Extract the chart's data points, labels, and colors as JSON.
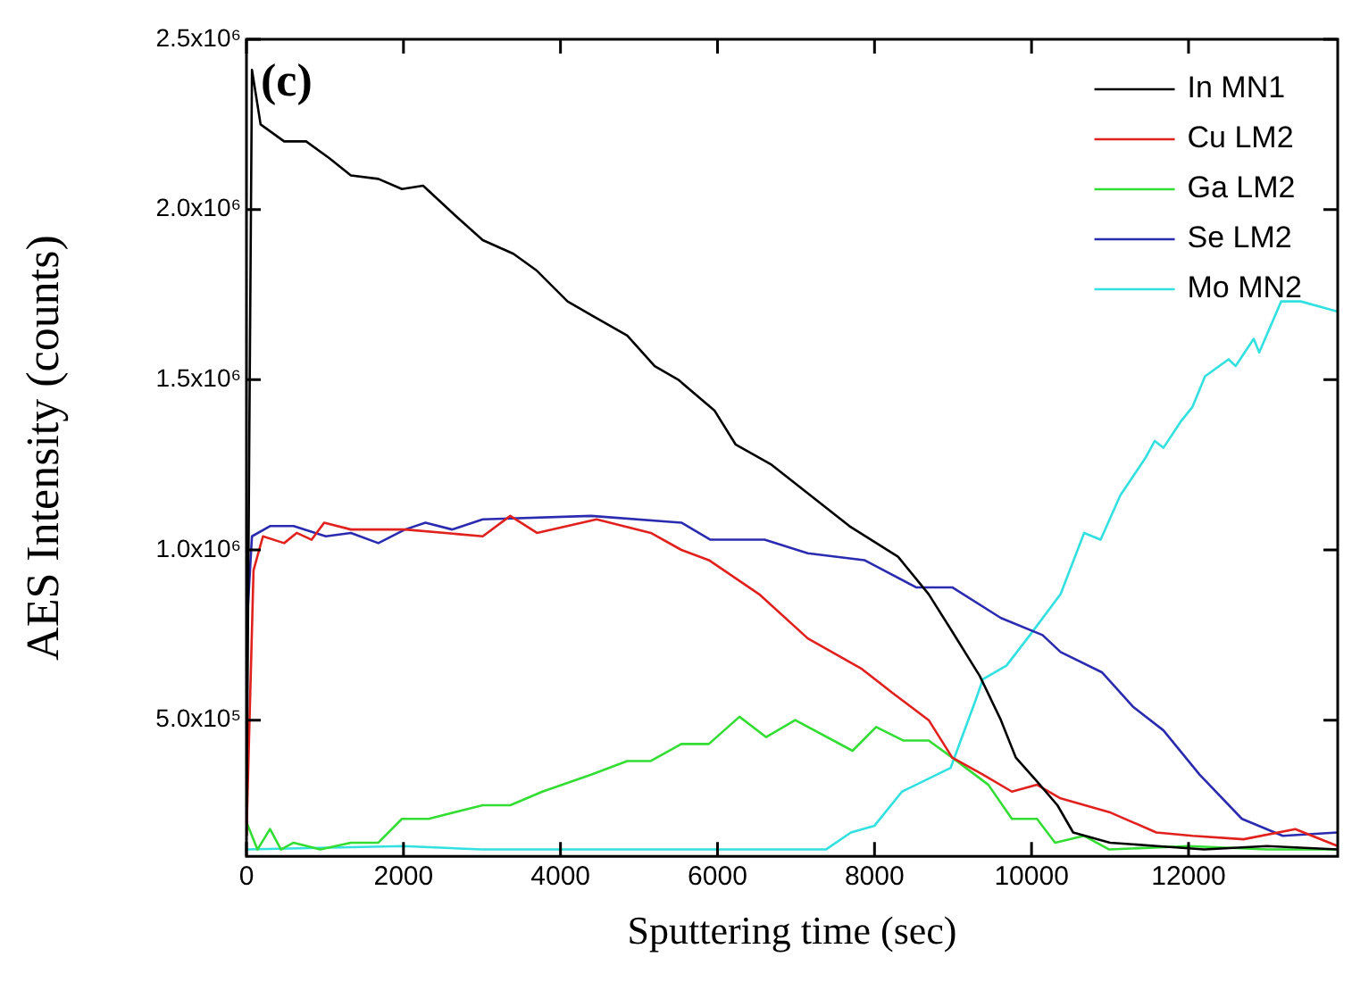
{
  "chart_data": {
    "type": "line",
    "xlabel": "Sputtering time (sec)",
    "ylabel": "AES Intensity (counts)",
    "annotations": [
      "(c)"
    ],
    "xlim": [
      0,
      13900
    ],
    "xticks": [
      0,
      2000,
      4000,
      6000,
      8000,
      10000,
      12000
    ],
    "ylim": [
      100000,
      2500000
    ],
    "yticks": [
      {
        "value": 500000,
        "label": "5.0x10⁵"
      },
      {
        "value": 1000000,
        "label": "1.0x10⁶"
      },
      {
        "value": 1500000,
        "label": "1.5x10⁶"
      },
      {
        "value": 2000000,
        "label": "2.0x10⁶"
      },
      {
        "value": 2500000,
        "label": "2.5x10⁶"
      }
    ],
    "grid": false,
    "legend": "top right",
    "marker": "none",
    "line_style": "solid",
    "series": [
      {
        "name": "In MN1",
        "color": "#000000",
        "x": [
          0,
          70,
          180,
          480,
          760,
          1060,
          1330,
          1680,
          1980,
          2250,
          2670,
          3010,
          3400,
          3700,
          4090,
          4390,
          4850,
          5200,
          5500,
          5960,
          6230,
          6690,
          7680,
          8300,
          8690,
          8990,
          9340,
          9610,
          9800,
          10070,
          10330,
          10530,
          11000,
          11600,
          12200,
          13000,
          13900
        ],
        "values": [
          160000,
          2410000,
          2250000,
          2200000,
          2200000,
          2150000,
          2100000,
          2090000,
          2060000,
          2070000,
          1980000,
          1910000,
          1870000,
          1820000,
          1730000,
          1690000,
          1630000,
          1540000,
          1500000,
          1410000,
          1310000,
          1250000,
          1070000,
          980000,
          870000,
          760000,
          630000,
          500000,
          390000,
          320000,
          250000,
          170000,
          140000,
          130000,
          120000,
          130000,
          120000
        ]
      },
      {
        "name": "Cu LM2",
        "color": "#e0211d",
        "x": [
          0,
          90,
          210,
          480,
          640,
          830,
          990,
          1330,
          2020,
          3010,
          3360,
          3700,
          4460,
          5150,
          5540,
          5890,
          6530,
          7150,
          7840,
          8230,
          8690,
          8990,
          9380,
          9750,
          10070,
          10370,
          10990,
          11590,
          12050,
          12700,
          13360,
          13900
        ],
        "values": [
          160000,
          940000,
          1040000,
          1020000,
          1050000,
          1030000,
          1080000,
          1060000,
          1060000,
          1040000,
          1100000,
          1050000,
          1090000,
          1050000,
          1000000,
          970000,
          870000,
          740000,
          650000,
          580000,
          500000,
          390000,
          340000,
          290000,
          310000,
          270000,
          230000,
          170000,
          160000,
          150000,
          180000,
          130000
        ]
      },
      {
        "name": "Ga LM2",
        "color": "#33dd33",
        "x": [
          0,
          140,
          300,
          440,
          600,
          940,
          1330,
          1680,
          1980,
          2320,
          3010,
          3360,
          3770,
          4390,
          4850,
          5150,
          5540,
          5890,
          6280,
          6620,
          6990,
          7720,
          8020,
          8370,
          8690,
          8990,
          9450,
          9750,
          10070,
          10300,
          10670,
          10990,
          12000,
          13000,
          13900
        ],
        "values": [
          200000,
          120000,
          180000,
          120000,
          140000,
          120000,
          140000,
          140000,
          210000,
          210000,
          250000,
          250000,
          290000,
          340000,
          380000,
          380000,
          430000,
          430000,
          510000,
          450000,
          500000,
          410000,
          480000,
          440000,
          440000,
          390000,
          310000,
          210000,
          210000,
          140000,
          160000,
          120000,
          130000,
          120000,
          120000
        ]
      },
      {
        "name": "Se LM2",
        "color": "#2b2bb0",
        "x": [
          0,
          70,
          300,
          600,
          1010,
          1330,
          1680,
          2020,
          2280,
          2620,
          3010,
          4390,
          5540,
          5910,
          6600,
          7150,
          7870,
          8530,
          8990,
          9610,
          10140,
          10370,
          10900,
          11290,
          11680,
          12140,
          12680,
          13200,
          13900
        ],
        "values": [
          760000,
          1040000,
          1070000,
          1070000,
          1040000,
          1050000,
          1020000,
          1060000,
          1080000,
          1060000,
          1090000,
          1100000,
          1080000,
          1030000,
          1030000,
          990000,
          970000,
          890000,
          890000,
          800000,
          750000,
          700000,
          640000,
          540000,
          470000,
          340000,
          210000,
          160000,
          170000
        ]
      },
      {
        "name": "Mo MN2",
        "color": "#33e0e0",
        "x": [
          0,
          2000,
          3000,
          6200,
          7380,
          7700,
          8000,
          8350,
          8970,
          9290,
          9380,
          9680,
          9980,
          10370,
          10670,
          10880,
          11130,
          11450,
          11570,
          11680,
          11910,
          12050,
          12210,
          12510,
          12600,
          12830,
          12900,
          13180,
          13430,
          13900
        ],
        "values": [
          120000,
          130000,
          120000,
          120000,
          120000,
          170000,
          190000,
          290000,
          360000,
          560000,
          620000,
          660000,
          750000,
          870000,
          1050000,
          1030000,
          1160000,
          1270000,
          1320000,
          1300000,
          1380000,
          1420000,
          1510000,
          1560000,
          1540000,
          1620000,
          1580000,
          1730000,
          1730000,
          1700000
        ]
      }
    ]
  }
}
